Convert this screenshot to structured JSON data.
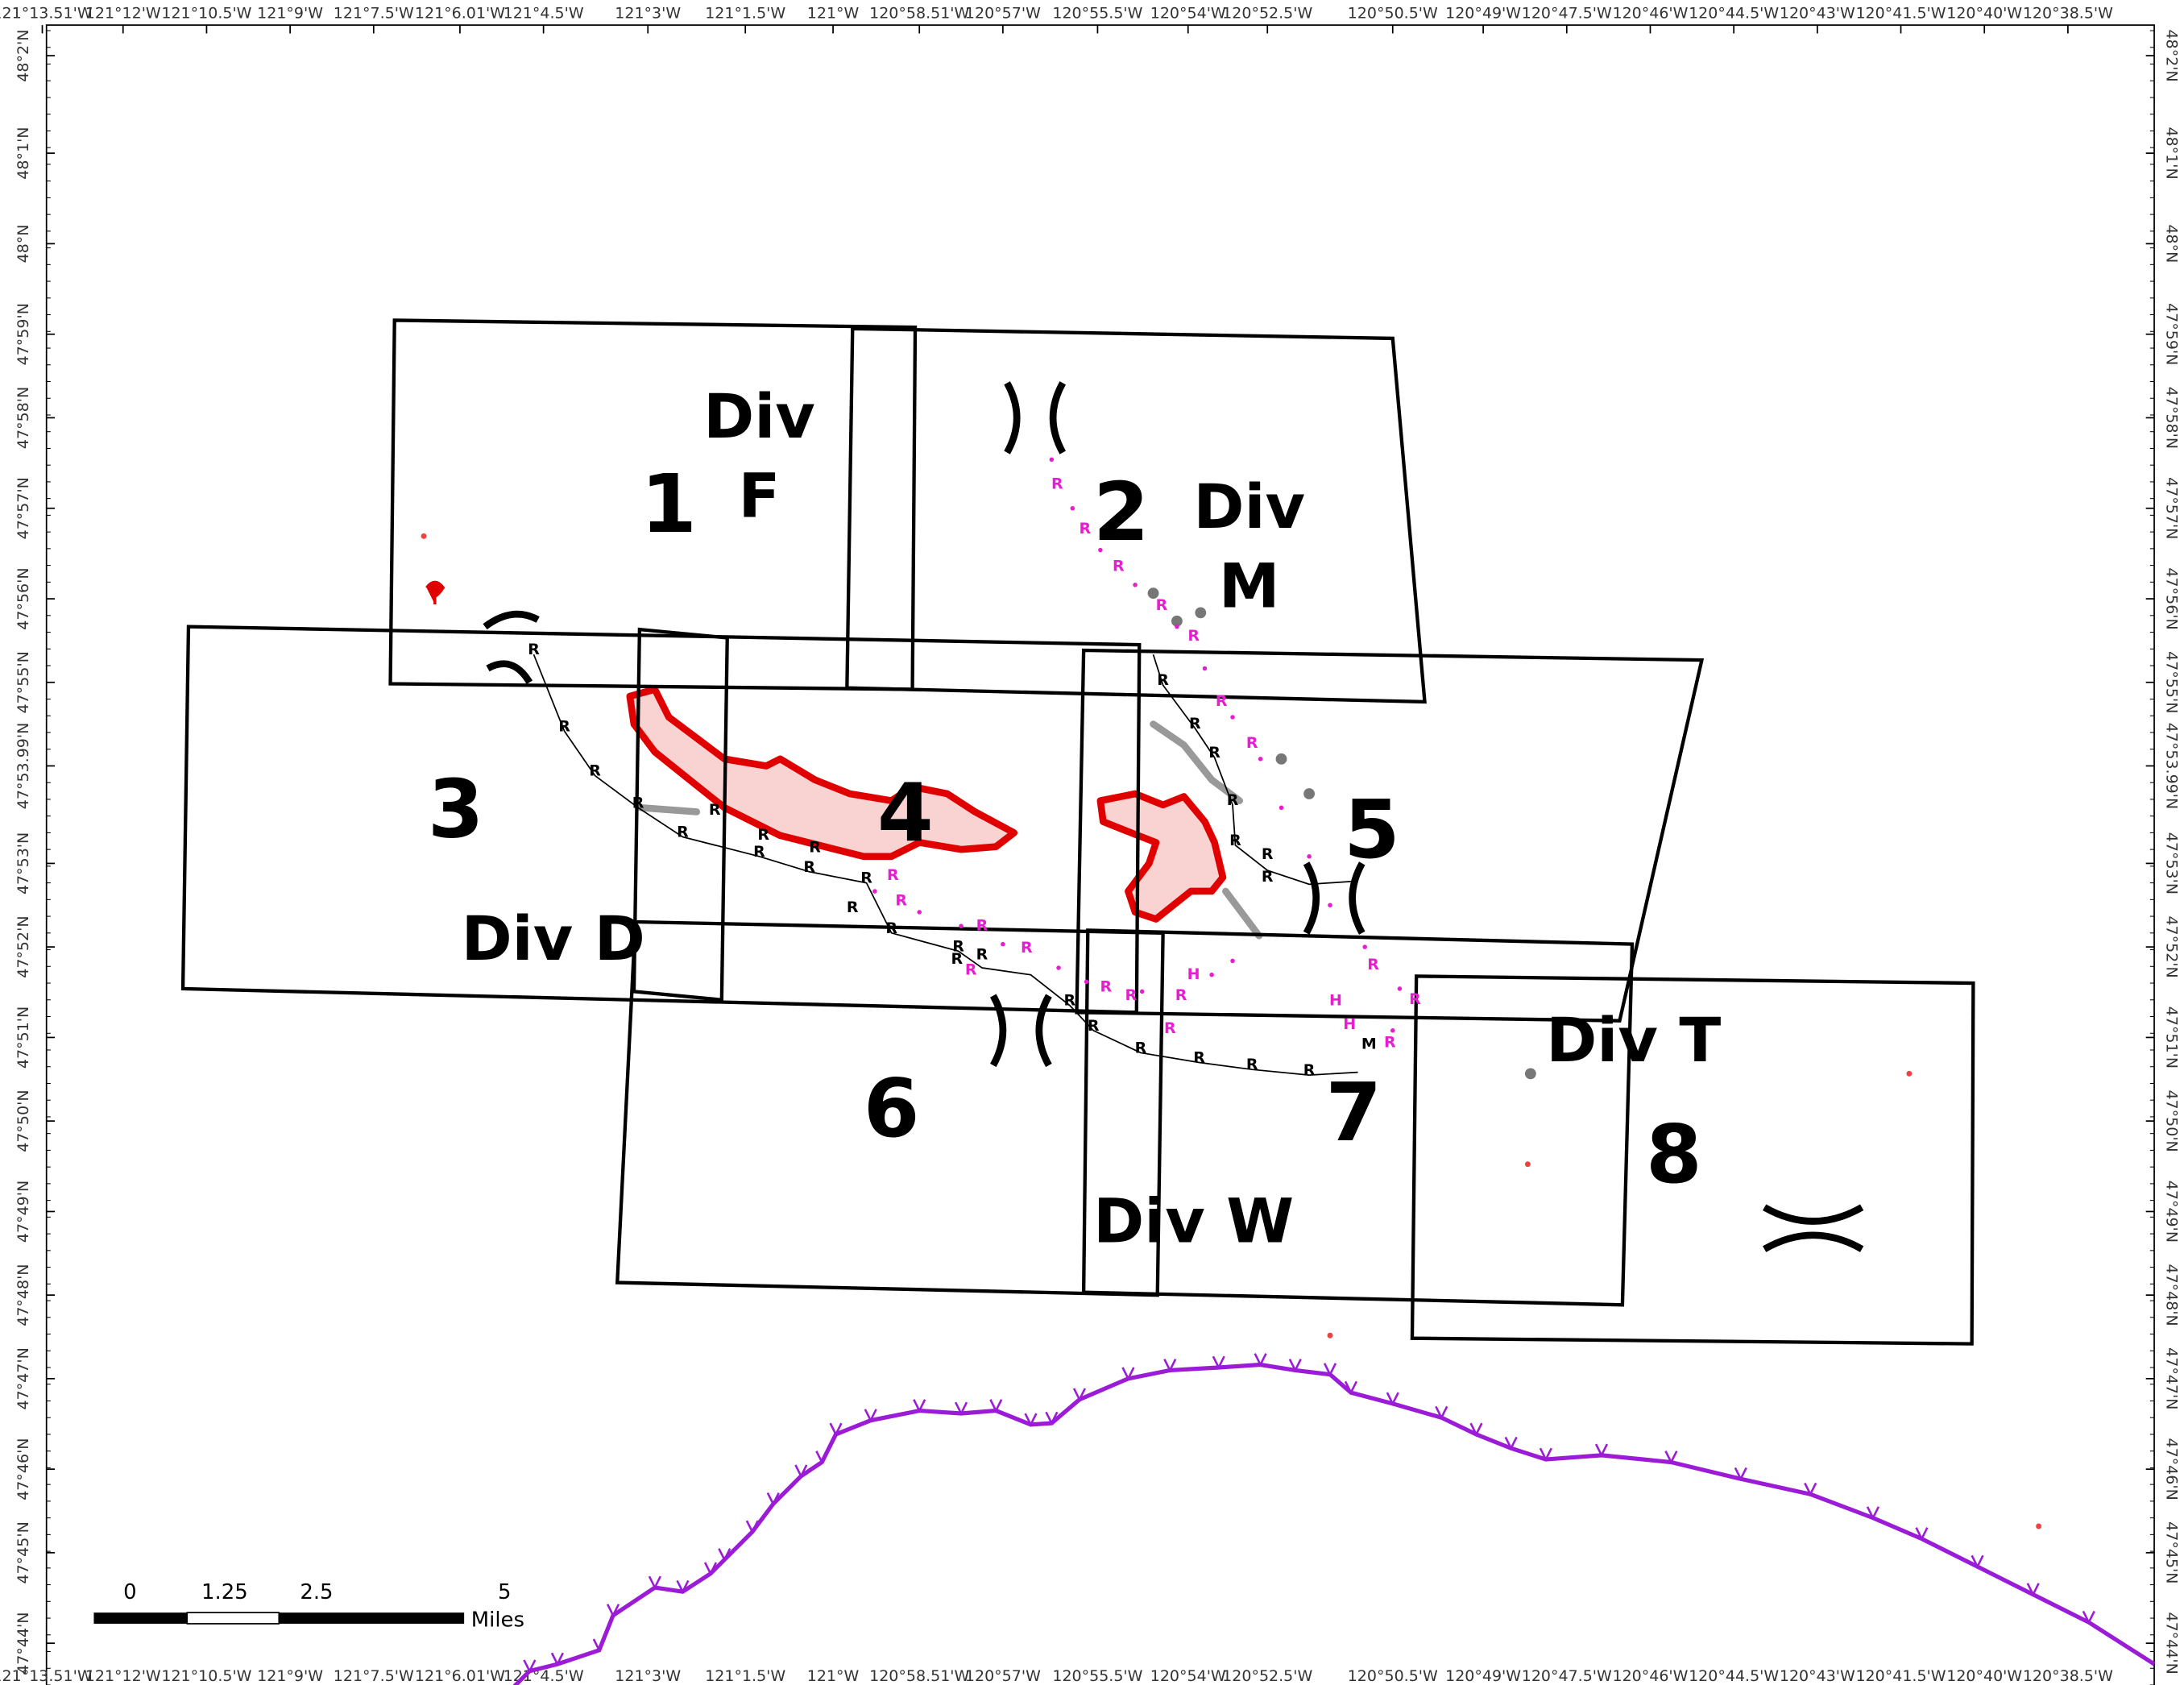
{
  "longitude_labels": [
    "121°13.51'W",
    "121°12'W",
    "121°10.5'W",
    "121°9'W",
    "121°7.5'W",
    "121°6.01'W",
    "121°4.5'W",
    "121°3'W",
    "121°1.5'W",
    "121°W",
    "120°58.51'W",
    "120°57'W",
    "120°55.5'W",
    "120°54'W",
    "120°52.5'W",
    "120°50.5'W",
    "120°49'W",
    "120°47.5'W",
    "120°46'W",
    "120°44.5'W",
    "120°43'W",
    "120°41.5'W",
    "120°40'W",
    "120°38.5'W"
  ],
  "latitude_labels": [
    "48°2'N",
    "48°1'N",
    "48°N",
    "47°59'N",
    "47°58'N",
    "47°57'N",
    "47°56'N",
    "47°55'N",
    "47°53.99'N",
    "47°53'N",
    "47°52'N",
    "47°51'N",
    "47°50'N",
    "47°49'N",
    "47°48'N",
    "47°47'N",
    "47°46'N",
    "47°45'N",
    "47°44'N"
  ],
  "map_labels": [
    {
      "lines": [
        "Div",
        "F"
      ]
    },
    {
      "lines": [
        "1"
      ]
    },
    {
      "lines": [
        "2"
      ]
    },
    {
      "lines": [
        "Div",
        "M"
      ]
    },
    {
      "lines": [
        "3"
      ]
    },
    {
      "lines": [
        "4"
      ]
    },
    {
      "lines": [
        "5"
      ]
    },
    {
      "lines": [
        "Div D"
      ]
    },
    {
      "lines": [
        "6"
      ]
    },
    {
      "lines": [
        "7"
      ]
    },
    {
      "lines": [
        "Div W"
      ]
    },
    {
      "lines": [
        "Div T"
      ]
    },
    {
      "lines": [
        "8"
      ]
    }
  ],
  "road_markers": {
    "color": "#000000",
    "labels": [
      "R",
      "R",
      "R",
      "R",
      "R",
      "R",
      "R",
      "R",
      "R",
      "R",
      "R",
      "R",
      "R",
      "R",
      "R",
      "R",
      "R",
      "R",
      "R",
      "R",
      "R",
      "R",
      "R",
      "R",
      "R",
      "R",
      "R",
      "R",
      "R",
      "M"
    ]
  },
  "route_markers": {
    "color": "#e61ecf",
    "labels": [
      "R",
      "R",
      "R",
      "R",
      "R",
      "R",
      "R",
      "R",
      "R",
      "R",
      "R",
      "R",
      "R",
      "R",
      "R",
      "H",
      "H",
      "H",
      "R",
      "R",
      "R",
      "R"
    ]
  },
  "scale_bar": {
    "ticks": [
      "0",
      "1.25",
      "2.5",
      "5"
    ],
    "unit": "Miles"
  }
}
